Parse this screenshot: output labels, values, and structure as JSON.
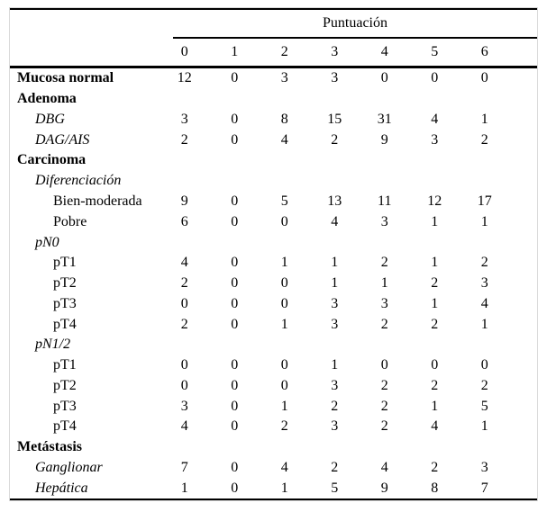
{
  "colors": {
    "background": "#ffffff",
    "rule": "#000000",
    "frame_border": "#d9d9d9",
    "text": "#000000"
  },
  "table": {
    "spanner_label": "Puntuación",
    "column_headers": [
      "0",
      "1",
      "2",
      "3",
      "4",
      "5",
      "6"
    ],
    "rows": [
      {
        "label": "Mucosa normal",
        "style": "bold",
        "indent": 0,
        "values": [
          "12",
          "0",
          "3",
          "3",
          "0",
          "0",
          "0"
        ]
      },
      {
        "label": "Adenoma",
        "style": "bold",
        "indent": 0,
        "values": null
      },
      {
        "label": "DBG",
        "style": "italic",
        "indent": 1,
        "values": [
          "3",
          "0",
          "8",
          "15",
          "31",
          "4",
          "1"
        ]
      },
      {
        "label": "DAG/AIS",
        "style": "italic",
        "indent": 1,
        "values": [
          "2",
          "0",
          "4",
          "2",
          "9",
          "3",
          "2"
        ]
      },
      {
        "label": "Carcinoma",
        "style": "bold",
        "indent": 0,
        "values": null
      },
      {
        "label": "Diferenciación",
        "style": "italic",
        "indent": 1,
        "values": null
      },
      {
        "label": "Bien-moderada",
        "style": "regular",
        "indent": 2,
        "values": [
          "9",
          "0",
          "5",
          "13",
          "11",
          "12",
          "17"
        ]
      },
      {
        "label": "Pobre",
        "style": "regular",
        "indent": 2,
        "values": [
          "6",
          "0",
          "0",
          "4",
          "3",
          "1",
          "1"
        ]
      },
      {
        "label": "pN0",
        "style": "italic",
        "indent": 1,
        "values": null
      },
      {
        "label": "pT1",
        "style": "regular",
        "indent": 2,
        "values": [
          "4",
          "0",
          "1",
          "1",
          "2",
          "1",
          "2"
        ]
      },
      {
        "label": "pT2",
        "style": "regular",
        "indent": 2,
        "values": [
          "2",
          "0",
          "0",
          "1",
          "1",
          "2",
          "3"
        ]
      },
      {
        "label": "pT3",
        "style": "regular",
        "indent": 2,
        "values": [
          "0",
          "0",
          "0",
          "3",
          "3",
          "1",
          "4"
        ]
      },
      {
        "label": "pT4",
        "style": "regular",
        "indent": 2,
        "values": [
          "2",
          "0",
          "1",
          "3",
          "2",
          "2",
          "1"
        ]
      },
      {
        "label": "pN1/2",
        "style": "italic",
        "indent": 1,
        "values": null
      },
      {
        "label": "pT1",
        "style": "regular",
        "indent": 2,
        "values": [
          "0",
          "0",
          "0",
          "1",
          "0",
          "0",
          "0"
        ]
      },
      {
        "label": "pT2",
        "style": "regular",
        "indent": 2,
        "values": [
          "0",
          "0",
          "0",
          "3",
          "2",
          "2",
          "2"
        ]
      },
      {
        "label": "pT3",
        "style": "regular",
        "indent": 2,
        "values": [
          "3",
          "0",
          "1",
          "2",
          "2",
          "1",
          "5"
        ]
      },
      {
        "label": "pT4",
        "style": "regular",
        "indent": 2,
        "values": [
          "4",
          "0",
          "2",
          "3",
          "2",
          "4",
          "1"
        ]
      },
      {
        "label": "Metástasis",
        "style": "bold",
        "indent": 0,
        "values": null
      },
      {
        "label": "Ganglionar",
        "style": "italic",
        "indent": 1,
        "values": [
          "7",
          "0",
          "4",
          "2",
          "4",
          "2",
          "3"
        ]
      },
      {
        "label": "Hepática",
        "style": "italic",
        "indent": 1,
        "values": [
          "1",
          "0",
          "1",
          "5",
          "9",
          "8",
          "7"
        ]
      }
    ]
  }
}
